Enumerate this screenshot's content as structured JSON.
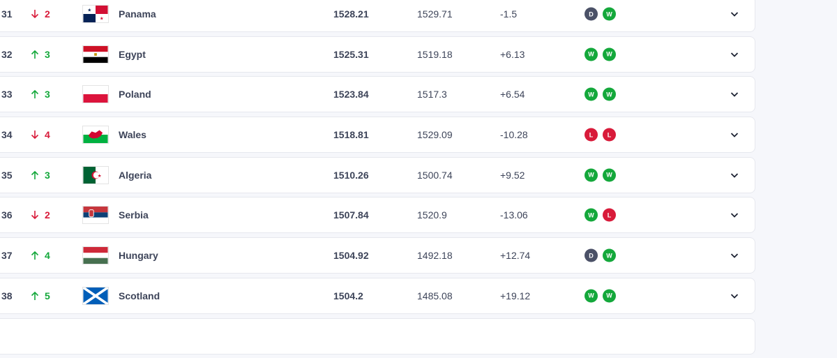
{
  "rows": [
    {
      "rank": "31",
      "dir": "down",
      "move": "2",
      "country": "Panama",
      "flag": "panama",
      "points": "1528.21",
      "previous": "1529.71",
      "diff": "-1.5",
      "form": [
        "D",
        "W"
      ]
    },
    {
      "rank": "32",
      "dir": "up",
      "move": "3",
      "country": "Egypt",
      "flag": "egypt",
      "points": "1525.31",
      "previous": "1519.18",
      "diff": "+6.13",
      "form": [
        "W",
        "W"
      ]
    },
    {
      "rank": "33",
      "dir": "up",
      "move": "3",
      "country": "Poland",
      "flag": "poland",
      "points": "1523.84",
      "previous": "1517.3",
      "diff": "+6.54",
      "form": [
        "W",
        "W"
      ]
    },
    {
      "rank": "34",
      "dir": "down",
      "move": "4",
      "country": "Wales",
      "flag": "wales",
      "points": "1518.81",
      "previous": "1529.09",
      "diff": "-10.28",
      "form": [
        "L",
        "L"
      ]
    },
    {
      "rank": "35",
      "dir": "up",
      "move": "3",
      "country": "Algeria",
      "flag": "algeria",
      "points": "1510.26",
      "previous": "1500.74",
      "diff": "+9.52",
      "form": [
        "W",
        "W"
      ]
    },
    {
      "rank": "36",
      "dir": "down",
      "move": "2",
      "country": "Serbia",
      "flag": "serbia",
      "points": "1507.84",
      "previous": "1520.9",
      "diff": "-13.06",
      "form": [
        "W",
        "L"
      ]
    },
    {
      "rank": "37",
      "dir": "up",
      "move": "4",
      "country": "Hungary",
      "flag": "hungary",
      "points": "1504.92",
      "previous": "1492.18",
      "diff": "+12.74",
      "form": [
        "D",
        "W"
      ]
    },
    {
      "rank": "38",
      "dir": "up",
      "move": "5",
      "country": "Scotland",
      "flag": "scotland",
      "points": "1504.2",
      "previous": "1485.08",
      "diff": "+19.12",
      "form": [
        "W",
        "W"
      ]
    }
  ],
  "colors": {
    "up": "#14a83b",
    "down": "#d81b3a",
    "win": "#14a83b",
    "draw": "#4b5167",
    "loss": "#d81b3a"
  }
}
